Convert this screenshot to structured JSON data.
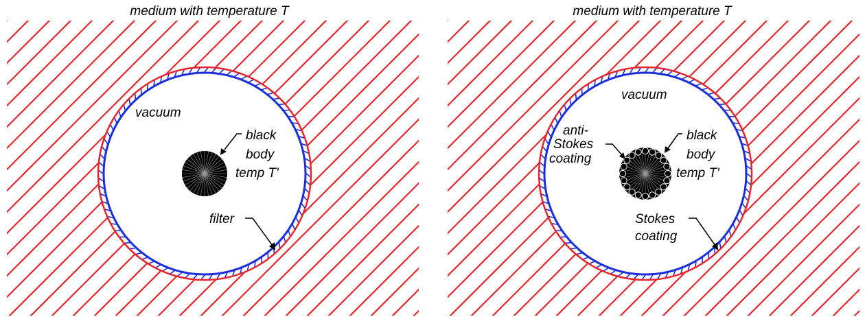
{
  "colors": {
    "medium": "#e8242a",
    "filter": "#1a2fd9",
    "body": "#000000",
    "background": "#ffffff"
  },
  "left_panel": {
    "title": "medium with temperature T",
    "vacuum": "vacuum",
    "black_body": [
      "black",
      "body",
      "temp T'"
    ],
    "filter": "filter"
  },
  "right_panel": {
    "title": "medium with temperature T",
    "vacuum": "vacuum",
    "black_body": [
      "black",
      "body",
      "temp T'"
    ],
    "anti_stokes": [
      "anti-",
      "Stokes",
      "coating"
    ],
    "stokes": [
      "Stokes",
      "coating"
    ]
  }
}
